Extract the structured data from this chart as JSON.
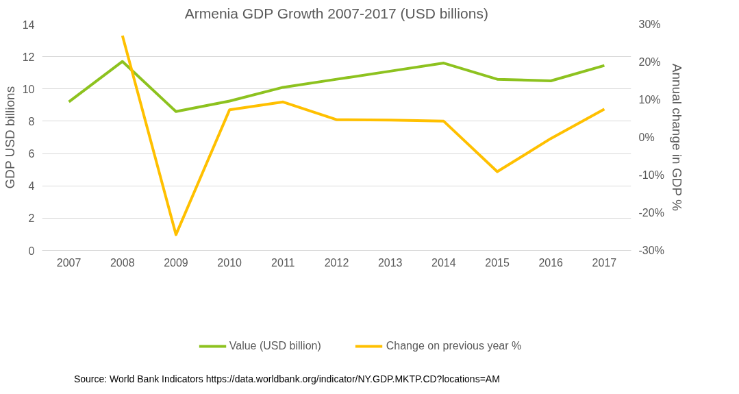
{
  "chart_data": {
    "type": "line",
    "title": "Armenia GDP Growth 2007-2017 (USD billions)",
    "ylabel": "GDP USD billions",
    "y2label": "Annual change in GDP %",
    "categories": [
      "2007",
      "2008",
      "2009",
      "2010",
      "2011",
      "2012",
      "2013",
      "2014",
      "2015",
      "2016",
      "2017"
    ],
    "series": [
      {
        "name": "Value (USD billion)",
        "color": "#8dc21f",
        "values": [
          9.2,
          11.7,
          8.6,
          9.25,
          10.1,
          10.6,
          11.1,
          11.6,
          10.6,
          10.5,
          11.45
        ]
      },
      {
        "name": "Change on previous year %",
        "color": "#ffc000",
        "axis": "y2",
        "values": [
          null,
          27,
          -25.8,
          7.3,
          9.4,
          4.7,
          4.6,
          4.3,
          -9.1,
          -0.3,
          7.5
        ]
      }
    ],
    "ylim": [
      0,
      14
    ],
    "yticks": [
      0,
      2,
      4,
      6,
      8,
      10,
      12,
      14
    ],
    "y2lim": [
      -30,
      30
    ],
    "y2ticks": [
      {
        "value": -30,
        "label": "-30%"
      },
      {
        "value": -20,
        "label": "-20%"
      },
      {
        "value": -10,
        "label": "-10%"
      },
      {
        "value": 0,
        "label": "0%"
      },
      {
        "value": 10,
        "label": "10%"
      },
      {
        "value": 20,
        "label": "20%"
      },
      {
        "value": 30,
        "label": "30%"
      }
    ],
    "grid": "y",
    "legend": "bottom",
    "marker": "none",
    "line_style": "solid",
    "annotations": [
      "Source:  World Bank Indicators https://data.worldbank.org/indicator/NY.GDP.MKTP.CD?locations=AM"
    ]
  }
}
